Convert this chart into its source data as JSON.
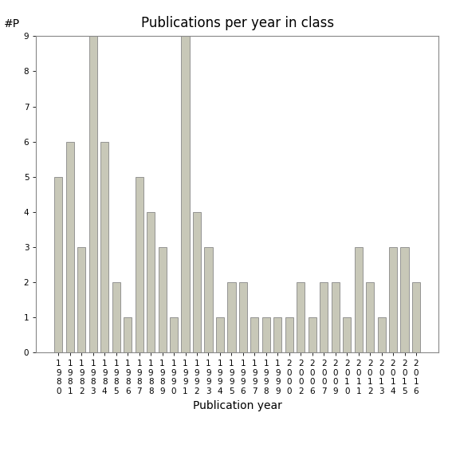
{
  "title": "Publications per year in class",
  "xlabel": "Publication year",
  "ylabel": "#P",
  "years": [
    "1980",
    "1981",
    "1982",
    "1983",
    "1984",
    "1985",
    "1986",
    "1987",
    "1988",
    "1989",
    "1990",
    "1991",
    "1992",
    "1993",
    "1994",
    "1995",
    "1996",
    "1997",
    "1998",
    "1999",
    "2000",
    "2002",
    "2006",
    "2007",
    "2009",
    "2010",
    "2011",
    "2012",
    "2013",
    "2014",
    "2015",
    "2016"
  ],
  "counts": [
    5,
    6,
    3,
    9,
    6,
    2,
    1,
    5,
    4,
    3,
    1,
    9,
    4,
    3,
    1,
    2,
    2,
    1,
    1,
    1,
    1,
    2,
    1,
    2,
    2,
    1,
    3,
    2,
    1,
    3,
    3,
    2
  ],
  "bar_color": "#c8c8b8",
  "bar_edge_color": "#888888",
  "ylim": [
    0,
    9
  ],
  "yticks": [
    0,
    1,
    2,
    3,
    4,
    5,
    6,
    7,
    8,
    9
  ],
  "bg_color": "#ffffff",
  "title_fontsize": 12,
  "label_fontsize": 10,
  "tick_fontsize": 7.5,
  "bar_width": 0.7
}
